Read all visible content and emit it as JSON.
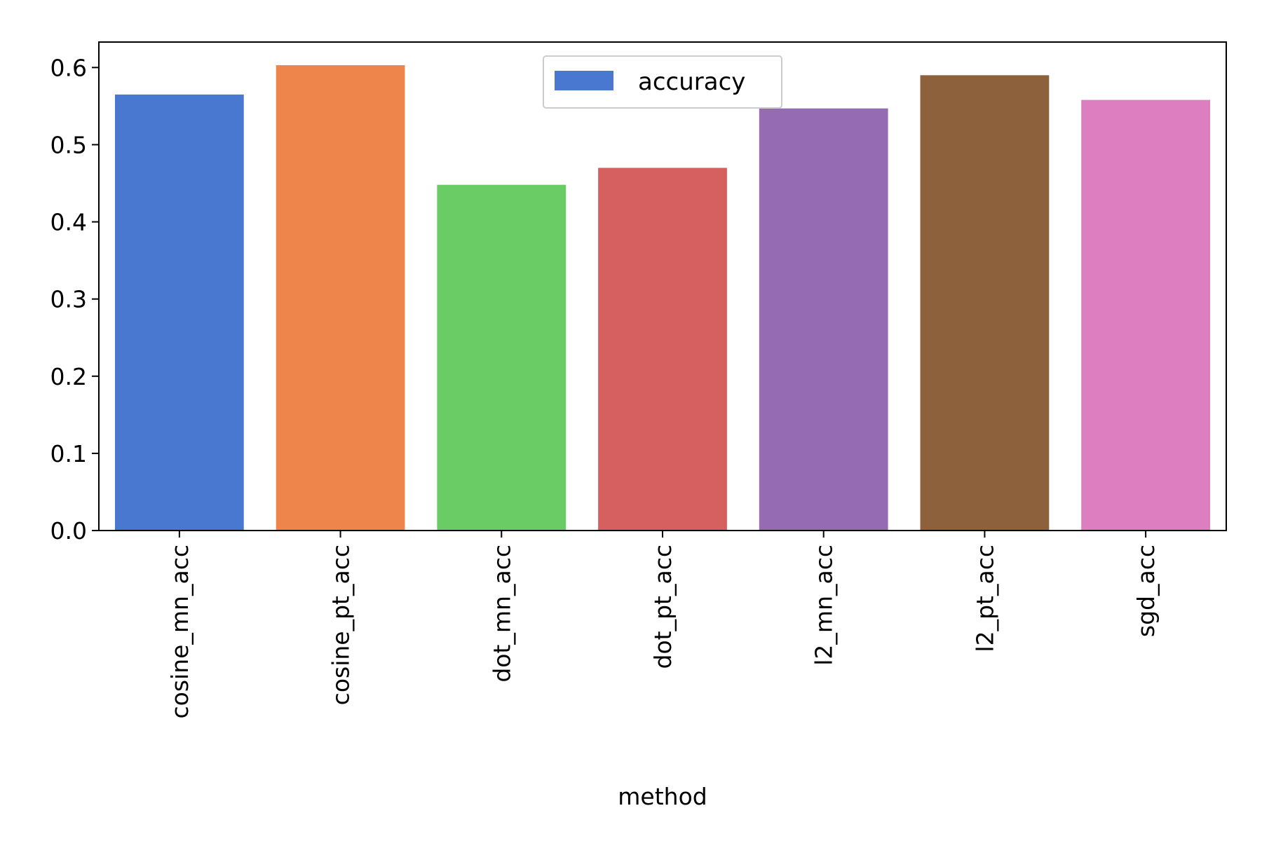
{
  "chart_data": {
    "type": "bar",
    "categories": [
      "cosine_mn_acc",
      "cosine_pt_acc",
      "dot_mn_acc",
      "dot_pt_acc",
      "l2_mn_acc",
      "l2_pt_acc",
      "sgd_acc"
    ],
    "series": [
      {
        "name": "accuracy",
        "values": [
          0.565,
          0.603,
          0.448,
          0.47,
          0.547,
          0.59,
          0.558
        ]
      }
    ],
    "bar_colors": [
      "#4878d0",
      "#ee854a",
      "#6acc64",
      "#d65f5f",
      "#956cb4",
      "#8c613c",
      "#dc7ec0"
    ],
    "title": "",
    "xlabel": "method",
    "ylabel": "",
    "ylim": [
      0,
      0.633
    ],
    "yticks": [
      0.0,
      0.1,
      0.2,
      0.3,
      0.4,
      0.5,
      0.6
    ],
    "ytick_labels": [
      "0.0",
      "0.1",
      "0.2",
      "0.3",
      "0.4",
      "0.5",
      "0.6"
    ],
    "grid": false,
    "legend_position": "top-center"
  }
}
